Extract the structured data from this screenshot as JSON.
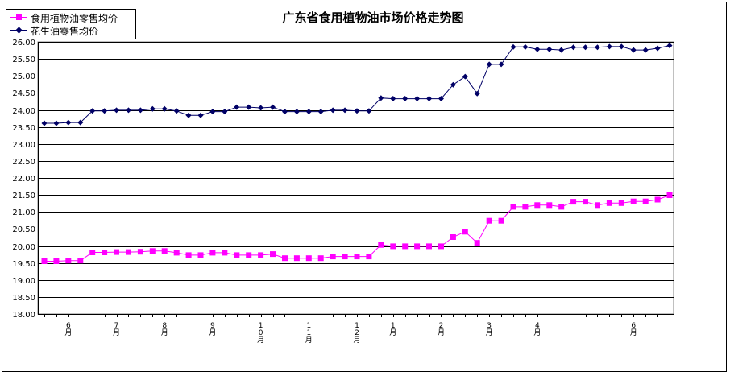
{
  "chart_data": {
    "type": "line",
    "title": "广东省食用植物油市场价格走势图",
    "xlabel": "",
    "ylabel": "",
    "ylim": [
      18.0,
      26.0
    ],
    "y_ticks": [
      "18.00",
      "18.50",
      "19.00",
      "19.50",
      "20.00",
      "20.50",
      "21.00",
      "21.50",
      "22.00",
      "22.50",
      "23.00",
      "23.50",
      "24.00",
      "24.50",
      "25.00",
      "25.50",
      "26.00"
    ],
    "x_tick_labels": [
      {
        "label": "6月",
        "at": 2
      },
      {
        "label": "7月",
        "at": 6
      },
      {
        "label": "8月",
        "at": 10
      },
      {
        "label": "9月",
        "at": 14
      },
      {
        "label": "10月",
        "at": 18
      },
      {
        "label": "11月",
        "at": 22
      },
      {
        "label": "12月",
        "at": 26
      },
      {
        "label": "1月",
        "at": 29
      },
      {
        "label": "2月",
        "at": 33
      },
      {
        "label": "3月",
        "at": 37
      },
      {
        "label": "4月",
        "at": 41
      },
      {
        "label": "6月",
        "at": 49
      }
    ],
    "grid": true,
    "legend_position": "top-left",
    "series": [
      {
        "name": "食用植物油零售均价",
        "color": "#FF00FF",
        "marker": "square",
        "values": [
          19.55,
          19.55,
          19.57,
          19.57,
          19.81,
          19.81,
          19.82,
          19.82,
          19.83,
          19.85,
          19.85,
          19.8,
          19.73,
          19.73,
          19.8,
          19.8,
          19.73,
          19.73,
          19.73,
          19.76,
          19.64,
          19.64,
          19.64,
          19.64,
          19.69,
          19.69,
          19.69,
          19.69,
          20.03,
          19.99,
          19.99,
          19.99,
          19.99,
          19.99,
          20.26,
          20.42,
          20.09,
          20.74,
          20.74,
          21.15,
          21.15,
          21.2,
          21.2,
          21.15,
          21.3,
          21.3,
          21.2,
          21.26,
          21.26,
          21.31,
          21.31,
          21.36,
          21.49
        ]
      },
      {
        "name": "花生油零售均价",
        "color": "#000066",
        "marker": "diamond",
        "values": [
          23.61,
          23.61,
          23.63,
          23.63,
          23.97,
          23.97,
          23.99,
          23.99,
          23.99,
          24.03,
          24.03,
          23.97,
          23.84,
          23.84,
          23.95,
          23.95,
          24.08,
          24.08,
          24.06,
          24.08,
          23.95,
          23.95,
          23.95,
          23.95,
          23.99,
          23.99,
          23.97,
          23.97,
          24.35,
          24.33,
          24.33,
          24.33,
          24.33,
          24.33,
          24.74,
          24.98,
          24.48,
          25.34,
          25.34,
          25.85,
          25.85,
          25.78,
          25.78,
          25.76,
          25.84,
          25.84,
          25.84,
          25.86,
          25.86,
          25.76,
          25.76,
          25.81,
          25.89
        ]
      }
    ]
  }
}
